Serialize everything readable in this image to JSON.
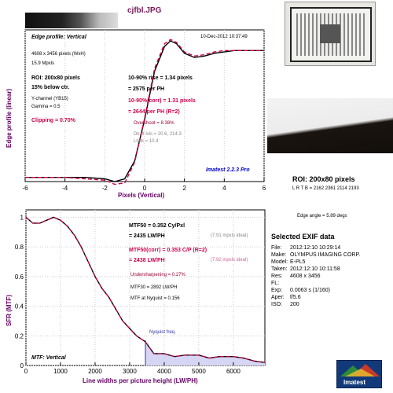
{
  "file_title": "cjfbl.JPG",
  "edge": {
    "title": "Edge profile: Vertical",
    "datetime": "10-Dec-2012 10:37:49",
    "dims": "4608 x 3456 pixels (WxH)",
    "mpxls": "15.9 Mpxls",
    "roi": "ROI: 200x80 pixels",
    "below": "15% below ctr.",
    "ychannel": "Y-channel  (YB15)",
    "gamma": "Gamma = 0.5",
    "clipping": "Clipping =  0.70%",
    "rise1": "10-90% rise = 1.34 pixels",
    "rise2": "= 2575 per PH",
    "corr1": "10-90%(corr) = 1.31 pixels",
    "corr2": "= 2644 per PH  (R=2)",
    "overshoot": "Overshoot = 8.38%",
    "dk": "Dk, lt lvls = 20.6, 214.3",
    "ltdk": "Lt/dk = 10.4",
    "imatest": "Imatest 2.2.3 Pro",
    "ylabel": "Edge profile (linear)",
    "xlabel": "Pixels (Vertical)"
  },
  "mtf": {
    "mtf50": "MTF50 = 0.352 Cy/Pxl",
    "mtf50_lw": "= 2435 LW/PH",
    "ideal1": "(7.91 mpxls ideal)",
    "mtf50c": "MTF50(corr) = 0.353 C/P  (R=2)",
    "mtf50c_lw": "= 2438 LW/PH",
    "ideal2": "(7.92 mpxls ideal)",
    "usharp": "Undersharpening = 0.27%",
    "mtf30": "MTF30 = 2892 LW/PH",
    "nyq": "MTF at Nyquist = 0.156",
    "nyq_label": "Nyquist freq.",
    "title": "MTF: Vertical",
    "ylabel": "SFR (MTF)",
    "xlabel": "Line widths per picture height (LW/PH)"
  },
  "right": {
    "roi": "ROI: 200x80 pixels",
    "lrtb": "L R T B = 2162 2361  2114 2193",
    "edge_angle": "Edge angle = 5.89 degs",
    "exif_title": "Selected EXIF data",
    "exif": [
      {
        "k": "File:",
        "v": "2012:12:10 10:29:14"
      },
      {
        "k": "Make:",
        "v": "OLYMPUS IMAGING CORP."
      },
      {
        "k": "Model:",
        "v": "E-PL5"
      },
      {
        "k": "Taken:",
        "v": "2012:12:10 10:11:58"
      },
      {
        "k": "Res:",
        "v": "4608 x 3456"
      },
      {
        "k": "FL:",
        "v": ""
      },
      {
        "k": "Exp:",
        "v": "0.0063 s  (1/160)"
      },
      {
        "k": "Aper:",
        "v": "f/5.6"
      },
      {
        "k": "ISO:",
        "v": "200"
      }
    ],
    "logo": "Imatest"
  },
  "chart_data": [
    {
      "type": "line",
      "title": "Edge profile: Vertical",
      "xlabel": "Pixels (Vertical)",
      "ylabel": "Edge profile (linear)",
      "xlim": [
        -6,
        6
      ],
      "ylim": [
        0,
        1.1
      ],
      "xticks": [
        -6,
        -4,
        -2,
        0,
        2,
        4,
        6
      ],
      "series": [
        {
          "x": [
            -6,
            -5,
            -4,
            -3,
            -2,
            -1.5,
            -1,
            -0.5,
            0,
            0.5,
            1,
            1.3,
            1.6,
            2,
            2.5,
            3,
            3.5,
            4,
            4.5,
            5,
            5.5,
            6
          ],
          "y": [
            0.03,
            0.03,
            0.03,
            0.03,
            0.02,
            0.0,
            0.02,
            0.15,
            0.45,
            0.8,
            0.98,
            1.02,
            1.0,
            0.93,
            0.9,
            0.91,
            0.93,
            0.94,
            0.95,
            0.95,
            0.95,
            0.95
          ]
        },
        {
          "x": [
            -6,
            -5,
            -4,
            -3,
            -2,
            -1.5,
            -1,
            -0.5,
            0,
            0.5,
            1,
            1.3,
            1.6,
            2,
            2.5,
            3,
            3.5,
            4,
            4.5,
            5,
            5.5,
            6
          ],
          "y": [
            0.03,
            0.03,
            0.03,
            0.02,
            0.01,
            -0.02,
            -0.01,
            0.14,
            0.46,
            0.82,
            1.0,
            1.03,
            1.01,
            0.94,
            0.91,
            0.92,
            0.94,
            0.95,
            0.95,
            0.95,
            0.95,
            0.95
          ]
        }
      ]
    },
    {
      "type": "line",
      "title": "MTF: Vertical",
      "xlabel": "Line widths per picture height (LW/PH)",
      "ylabel": "SFR (MTF)",
      "xlim": [
        0,
        6912
      ],
      "ylim": [
        0,
        1.05
      ],
      "xticks": [
        0,
        1000,
        2000,
        3000,
        4000,
        5000,
        6000
      ],
      "yticks": [
        0,
        0.2,
        0.4,
        0.6,
        0.8,
        1
      ],
      "nyquist": 3456,
      "series": [
        {
          "x": [
            0,
            200,
            400,
            600,
            800,
            1000,
            1200,
            1400,
            1600,
            1800,
            2000,
            2200,
            2400,
            2600,
            2800,
            3000,
            3200,
            3456,
            3700,
            4000,
            4300,
            4600,
            5000,
            5300,
            5600,
            6000,
            6300,
            6600,
            6912
          ],
          "y": [
            1.0,
            0.96,
            0.96,
            0.98,
            1.0,
            0.98,
            0.94,
            0.88,
            0.8,
            0.7,
            0.6,
            0.52,
            0.46,
            0.38,
            0.3,
            0.25,
            0.2,
            0.16,
            0.08,
            0.08,
            0.06,
            0.07,
            0.07,
            0.05,
            0.06,
            0.06,
            0.05,
            0.03,
            0.02
          ]
        },
        {
          "x": [
            0,
            200,
            400,
            600,
            800,
            1000,
            1200,
            1400,
            1600,
            1800,
            2000,
            2200,
            2400,
            2600,
            2800,
            3000,
            3200,
            3456,
            3700,
            4000,
            4300,
            4600,
            5000,
            5300,
            5600,
            6000,
            6300,
            6600,
            6912
          ],
          "y": [
            1.0,
            0.96,
            0.96,
            0.98,
            1.0,
            0.98,
            0.94,
            0.88,
            0.8,
            0.7,
            0.6,
            0.52,
            0.46,
            0.38,
            0.3,
            0.25,
            0.2,
            0.16,
            0.08,
            0.08,
            0.06,
            0.07,
            0.07,
            0.05,
            0.06,
            0.06,
            0.05,
            0.03,
            0.02
          ]
        }
      ]
    }
  ]
}
